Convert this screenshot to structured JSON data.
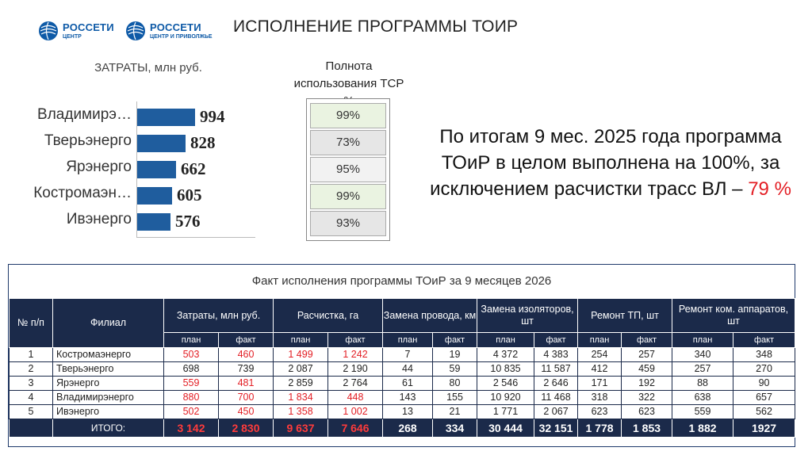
{
  "header": {
    "logo1": {
      "name": "РОССЕТИ",
      "sub": "ЦЕНТР"
    },
    "logo2": {
      "name": "РОССЕТИ",
      "sub": "ЦЕНТР И ПРИВОЛЖЬЕ"
    },
    "title": "ИСПОЛНЕНИЕ ПРОГРАММЫ ТОИР"
  },
  "chart_data": {
    "type": "bar",
    "title": "ЗАТРАТЫ, млн руб.",
    "categories": [
      "Владимирэ…",
      "Тверьэнерго",
      "Ярэнерго",
      "Костромаэн…",
      "Ивэнерго"
    ],
    "values": [
      994,
      828,
      662,
      605,
      576
    ],
    "xlim": [
      0,
      1000
    ],
    "color": "#1f5d9e"
  },
  "completeness": {
    "title": "Полнота использования ТСР %",
    "items": [
      {
        "value": "99%",
        "color": "#eaf3e1"
      },
      {
        "value": "73%",
        "color": "#e6e6e6"
      },
      {
        "value": "95%",
        "color": "#f2f2f2"
      },
      {
        "value": "99%",
        "color": "#eaf3e1"
      },
      {
        "value": "93%",
        "color": "#e6e6e6"
      }
    ]
  },
  "summary": {
    "text": "По итогам 9 мес. 2025 года программа ТОиР в целом выполнена на 100%, за исключением расчистки трасс ВЛ –",
    "highlight": "79 %"
  },
  "table": {
    "caption": "Факт исполнения программы ТОиР за 9 месяцев 2026",
    "col_no": "№ п/п",
    "col_branch": "Филиал",
    "groups": [
      "Затраты, млн руб.",
      "Расчистка, га",
      "Замена провода, км",
      "Замена изоляторов, шт",
      "Ремонт ТП, шт",
      "Ремонт ком. аппаратов, шт"
    ],
    "sub_plan": "план",
    "sub_fact": "факт",
    "rows": [
      {
        "no": "1",
        "name": "Костромаэнерго",
        "v": [
          "503",
          "460",
          "1 499",
          "1 242",
          "7",
          "19",
          "4 372",
          "4 383",
          "254",
          "257",
          "340",
          "348"
        ]
      },
      {
        "no": "2",
        "name": "Тверьэнерго",
        "v": [
          "698",
          "739",
          "2 087",
          "2 190",
          "44",
          "59",
          "10 835",
          "11 587",
          "412",
          "459",
          "257",
          "270"
        ]
      },
      {
        "no": "3",
        "name": "Ярэнерго",
        "v": [
          "559",
          "481",
          "2 859",
          "2 764",
          "61",
          "80",
          "2 546",
          "2 646",
          "171",
          "192",
          "88",
          "90"
        ]
      },
      {
        "no": "4",
        "name": "Владимирэнерго",
        "v": [
          "880",
          "700",
          "1 834",
          "448",
          "143",
          "155",
          "10 920",
          "11 468",
          "318",
          "322",
          "638",
          "657"
        ]
      },
      {
        "no": "5",
        "name": "Ивэнерго",
        "v": [
          "502",
          "450",
          "1 358",
          "1 002",
          "13",
          "21",
          "1 771",
          "2 067",
          "623",
          "623",
          "559",
          "562"
        ]
      }
    ],
    "red_cells": [
      [
        0,
        0
      ],
      [
        0,
        1
      ],
      [
        0,
        2
      ],
      [
        0,
        3
      ],
      [
        2,
        0
      ],
      [
        2,
        1
      ],
      [
        3,
        0
      ],
      [
        3,
        1
      ],
      [
        3,
        2
      ],
      [
        3,
        3
      ],
      [
        4,
        0
      ],
      [
        4,
        1
      ],
      [
        4,
        2
      ],
      [
        4,
        3
      ]
    ],
    "total": {
      "label": "ИТОГО:",
      "v": [
        "3 142",
        "2 830",
        "9 637",
        "7 646",
        "268",
        "334",
        "30 444",
        "32 151",
        "1 778",
        "1 853",
        "1 882",
        "1927"
      ]
    },
    "total_red": [
      0,
      1,
      2,
      3
    ]
  }
}
